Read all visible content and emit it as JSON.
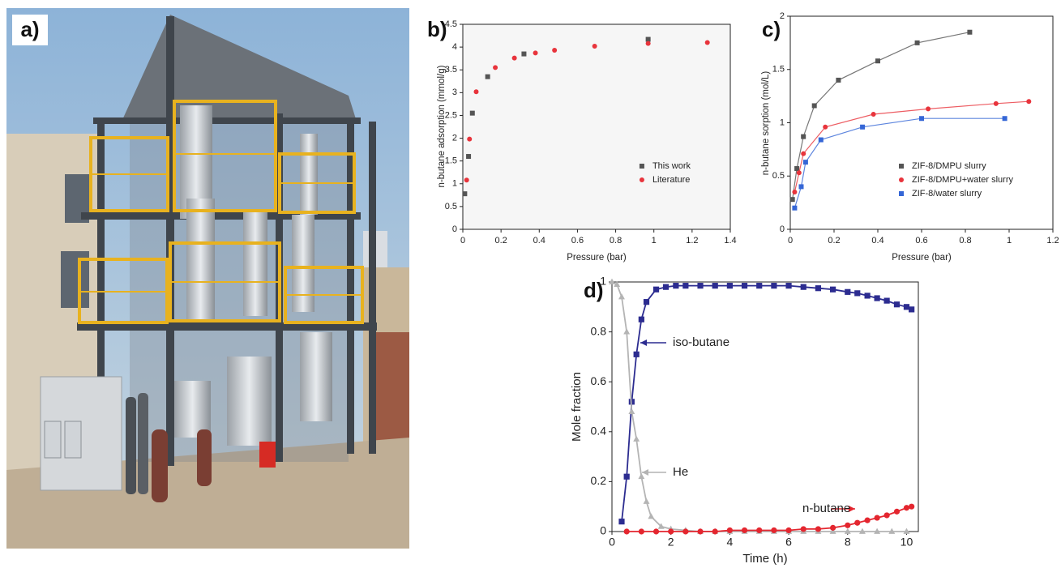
{
  "photo": {
    "label": "a)"
  },
  "chart_data": [
    {
      "type": "scatter",
      "label": "b)",
      "xlabel": "Pressure (bar)",
      "ylabel": "n-butane adsorption (mmol/g)",
      "xlim": [
        0,
        1.4
      ],
      "ylim": [
        0,
        4.5
      ],
      "xticks": [
        0,
        0.2,
        0.4,
        0.6,
        0.8,
        1,
        1.2,
        1.4
      ],
      "yticks": [
        0,
        0.5,
        1,
        1.5,
        2,
        2.5,
        3,
        3.5,
        4,
        4.5
      ],
      "legend": "lower right",
      "series": [
        {
          "name": "This work",
          "color": "#555555",
          "marker": "square",
          "x": [
            0.01,
            0.03,
            0.05,
            0.13,
            0.32,
            0.97
          ],
          "values": [
            0.78,
            1.6,
            2.55,
            3.35,
            3.85,
            4.17
          ]
        },
        {
          "name": "Literature",
          "color": "#e8343c",
          "marker": "circle",
          "x": [
            0.02,
            0.035,
            0.07,
            0.17,
            0.27,
            0.38,
            0.48,
            0.69,
            0.97,
            1.28
          ],
          "values": [
            1.08,
            1.98,
            3.02,
            3.55,
            3.76,
            3.87,
            3.93,
            4.02,
            4.08,
            4.1
          ]
        }
      ]
    },
    {
      "type": "scatter",
      "label": "c)",
      "xlabel": "Pressure (bar)",
      "ylabel": "n-butane sorption (mol/L)",
      "xlim": [
        0,
        1.2
      ],
      "ylim": [
        0,
        2
      ],
      "xticks": [
        0,
        0.2,
        0.4,
        0.6,
        0.8,
        1,
        1.2
      ],
      "yticks": [
        0,
        0.5,
        1,
        1.5,
        2
      ],
      "legend": "lower right",
      "series": [
        {
          "name": "ZIF-8/DMPU slurry",
          "color": "#555555",
          "marker": "square",
          "line": true,
          "x": [
            0.01,
            0.03,
            0.06,
            0.11,
            0.22,
            0.4,
            0.58,
            0.82
          ],
          "values": [
            0.28,
            0.57,
            0.87,
            1.16,
            1.4,
            1.58,
            1.75,
            1.85
          ]
        },
        {
          "name": "ZIF-8/DMPU+water slurry",
          "color": "#e8343c",
          "marker": "circle",
          "line": true,
          "x": [
            0.02,
            0.04,
            0.06,
            0.16,
            0.38,
            0.63,
            0.94,
            1.09
          ],
          "values": [
            0.35,
            0.53,
            0.71,
            0.96,
            1.08,
            1.13,
            1.18,
            1.2
          ]
        },
        {
          "name": "ZIF-8/water slurry",
          "color": "#3566d6",
          "marker": "square",
          "line": true,
          "x": [
            0.02,
            0.05,
            0.07,
            0.14,
            0.33,
            0.6,
            0.98
          ],
          "values": [
            0.2,
            0.4,
            0.63,
            0.84,
            0.96,
            1.04,
            1.04
          ]
        }
      ]
    },
    {
      "type": "line",
      "label": "d)",
      "xlabel": "Time (h)",
      "ylabel": "Mole fraction",
      "xlim": [
        0,
        10.4
      ],
      "ylim": [
        0,
        1
      ],
      "xticks": [
        0,
        2,
        4,
        6,
        8,
        10
      ],
      "yticks": [
        0,
        0.2,
        0.4,
        0.6,
        0.8,
        1
      ],
      "series": [
        {
          "name": "iso-butane",
          "color": "#2c2c90",
          "marker": "square",
          "line": true,
          "x": [
            0.33,
            0.5,
            0.67,
            0.83,
            1.0,
            1.17,
            1.5,
            1.83,
            2.17,
            2.5,
            3.0,
            3.5,
            4.0,
            4.5,
            5.0,
            5.5,
            6.0,
            6.5,
            7.0,
            7.5,
            8.0,
            8.33,
            8.67,
            9.0,
            9.33,
            9.67,
            10.0,
            10.17
          ],
          "values": [
            0.04,
            0.22,
            0.52,
            0.71,
            0.85,
            0.92,
            0.97,
            0.98,
            0.985,
            0.985,
            0.985,
            0.985,
            0.985,
            0.985,
            0.985,
            0.985,
            0.985,
            0.98,
            0.975,
            0.97,
            0.96,
            0.955,
            0.945,
            0.935,
            0.925,
            0.91,
            0.9,
            0.89
          ]
        },
        {
          "name": "He",
          "color": "#b4b4b4",
          "marker": "triangle",
          "line": true,
          "x": [
            0,
            0.17,
            0.33,
            0.5,
            0.67,
            0.83,
            1.0,
            1.17,
            1.33,
            1.67,
            2.0,
            2.5,
            3.0,
            3.5,
            4.0,
            4.5,
            5.0,
            5.5,
            6.0,
            6.5,
            7.0,
            7.5,
            8.0,
            8.5,
            9.0,
            9.5,
            10.0
          ],
          "values": [
            1,
            0.99,
            0.94,
            0.8,
            0.48,
            0.37,
            0.22,
            0.12,
            0.06,
            0.02,
            0.01,
            0.005,
            0,
            0,
            0,
            0,
            0,
            0,
            0,
            0,
            0,
            0,
            0,
            0,
            0,
            0,
            0
          ]
        },
        {
          "name": "n-butane",
          "color": "#e4262f",
          "marker": "circle",
          "line": true,
          "x": [
            0.5,
            1.0,
            1.5,
            2.0,
            2.5,
            3.0,
            3.5,
            4.0,
            4.5,
            5.0,
            5.5,
            6.0,
            6.5,
            7.0,
            7.5,
            8.0,
            8.33,
            8.67,
            9.0,
            9.33,
            9.67,
            10.0,
            10.17
          ],
          "values": [
            0,
            0,
            0,
            0,
            0,
            0,
            0,
            0.005,
            0.005,
            0.005,
            0.005,
            0.005,
            0.01,
            0.01,
            0.015,
            0.025,
            0.035,
            0.045,
            0.055,
            0.065,
            0.08,
            0.095,
            0.1
          ]
        }
      ]
    }
  ]
}
